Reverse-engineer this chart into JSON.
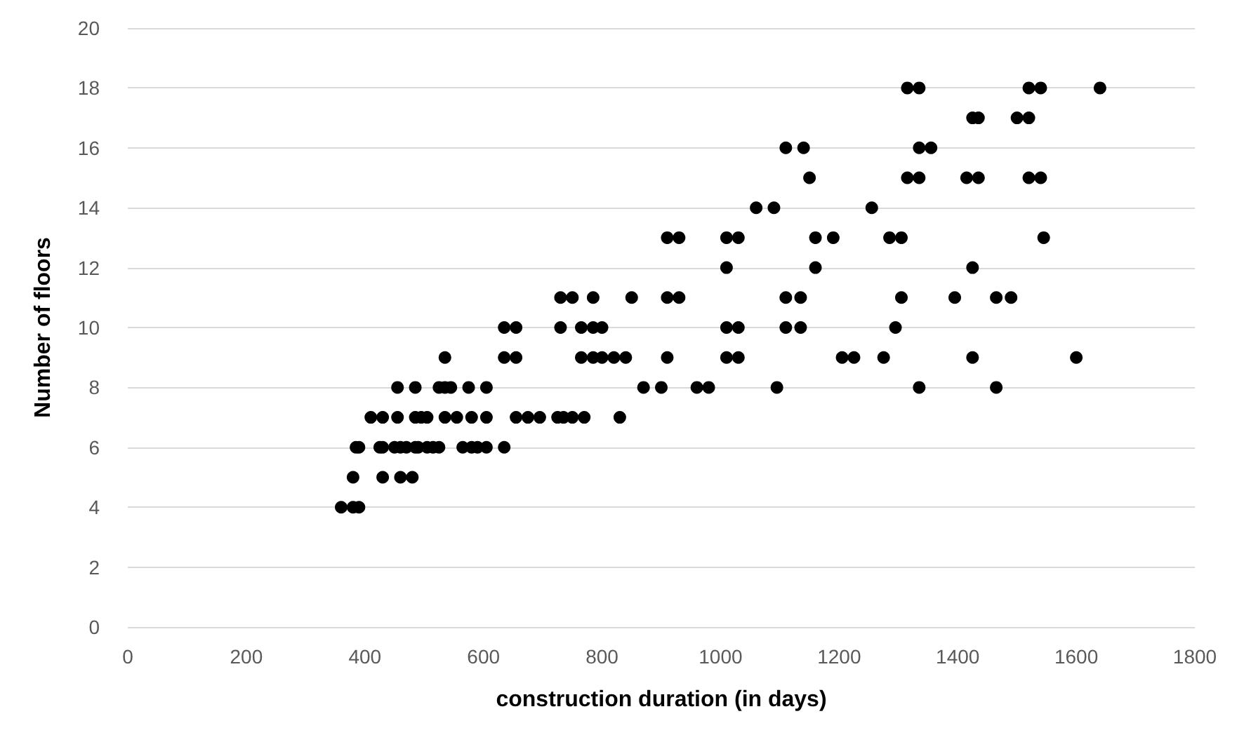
{
  "chart_data": {
    "type": "scatter",
    "xlabel": "construction duration (in days)",
    "ylabel": "Number of floors",
    "x": [
      360,
      380,
      390,
      380,
      430,
      460,
      480,
      385,
      390,
      425,
      430,
      450,
      460,
      470,
      485,
      490,
      505,
      515,
      525,
      565,
      580,
      590,
      605,
      635,
      410,
      430,
      455,
      485,
      495,
      505,
      535,
      555,
      580,
      605,
      655,
      675,
      695,
      725,
      735,
      750,
      770,
      830,
      455,
      485,
      525,
      535,
      545,
      575,
      605,
      870,
      900,
      960,
      980,
      1095,
      1335,
      1465,
      535,
      635,
      655,
      765,
      785,
      800,
      820,
      840,
      910,
      1010,
      1030,
      1205,
      1225,
      1275,
      1425,
      1600,
      635,
      655,
      730,
      765,
      785,
      800,
      1010,
      1030,
      1110,
      1135,
      1295,
      730,
      750,
      785,
      850,
      910,
      930,
      1110,
      1135,
      1305,
      1395,
      1465,
      1490,
      1010,
      1160,
      1425,
      910,
      930,
      1010,
      1030,
      1160,
      1190,
      1285,
      1305,
      1545,
      1060,
      1090,
      1255,
      1150,
      1315,
      1335,
      1415,
      1435,
      1520,
      1540,
      1110,
      1140,
      1335,
      1355,
      1425,
      1435,
      1500,
      1520,
      1315,
      1335,
      1520,
      1540,
      1640
    ],
    "values": [
      4,
      4,
      4,
      5,
      5,
      5,
      5,
      6,
      6,
      6,
      6,
      6,
      6,
      6,
      6,
      6,
      6,
      6,
      6,
      6,
      6,
      6,
      6,
      6,
      7,
      7,
      7,
      7,
      7,
      7,
      7,
      7,
      7,
      7,
      7,
      7,
      7,
      7,
      7,
      7,
      7,
      7,
      8,
      8,
      8,
      8,
      8,
      8,
      8,
      8,
      8,
      8,
      8,
      8,
      8,
      8,
      9,
      9,
      9,
      9,
      9,
      9,
      9,
      9,
      9,
      9,
      9,
      9,
      9,
      9,
      9,
      9,
      10,
      10,
      10,
      10,
      10,
      10,
      10,
      10,
      10,
      10,
      10,
      11,
      11,
      11,
      11,
      11,
      11,
      11,
      11,
      11,
      11,
      11,
      11,
      12,
      12,
      12,
      13,
      13,
      13,
      13,
      13,
      13,
      13,
      13,
      13,
      14,
      14,
      14,
      15,
      15,
      15,
      15,
      15,
      15,
      15,
      16,
      16,
      16,
      16,
      17,
      17,
      17,
      17,
      18,
      18,
      18,
      18,
      18
    ],
    "color": "#000000",
    "marker": "circle",
    "xlim": [
      0,
      1800
    ],
    "xticks": [
      0,
      200,
      400,
      600,
      800,
      1000,
      1200,
      1400,
      1600,
      1800
    ],
    "ylim": [
      0,
      20
    ],
    "yticks": [
      0,
      2,
      4,
      6,
      8,
      10,
      12,
      14,
      16,
      18,
      20
    ],
    "grid": "y"
  }
}
